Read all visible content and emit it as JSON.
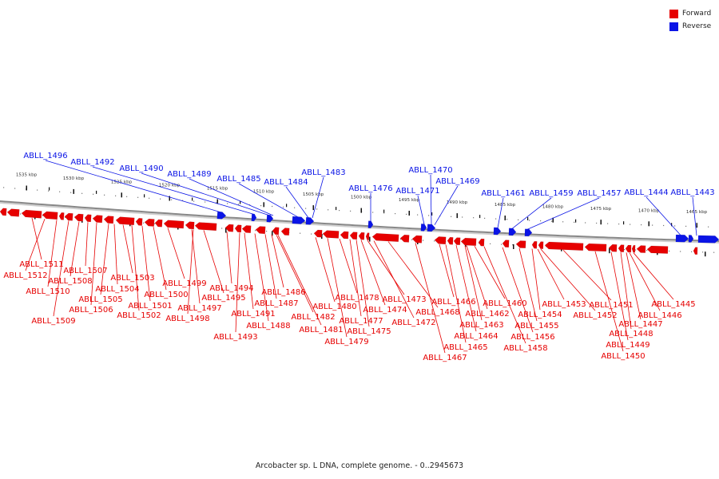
{
  "legend": {
    "forward_label": "Forward",
    "reverse_label": "Reverse",
    "forward_color": "#e60000",
    "reverse_color": "#0a14e6"
  },
  "caption": "Arcobacter sp. L DNA, complete genome. - 0..2945673",
  "colors": {
    "axis": "#888888",
    "tick": "#111111",
    "tick_label": "#333333"
  },
  "kbp_ticks": [
    "1535 kbp",
    "1530 kbp",
    "1525 kbp",
    "1520 kbp",
    "1515 kbp",
    "1510 kbp",
    "1505 kbp",
    "1500 kbp",
    "1495 kbp",
    "1490 kbp",
    "1485 kbp",
    "1480 kbp",
    "1475 kbp",
    "1470 kbp",
    "1465 kbp"
  ],
  "reverse_genes": [
    "ABLL_1496",
    "ABLL_1492",
    "ABLL_1490",
    "ABLL_1489",
    "ABLL_1485",
    "ABLL_1484",
    "ABLL_1483",
    "ABLL_1476",
    "ABLL_1471",
    "ABLL_1470",
    "ABLL_1469",
    "ABLL_1461",
    "ABLL_1459",
    "ABLL_1457",
    "ABLL_1444",
    "ABLL_1443"
  ],
  "forward_genes": [
    "ABLL_1511",
    "ABLL_1512",
    "ABLL_1510",
    "ABLL_1509",
    "ABLL_1508",
    "ABLL_1507",
    "ABLL_1506",
    "ABLL_1505",
    "ABLL_1504",
    "ABLL_1503",
    "ABLL_1502",
    "ABLL_1501",
    "ABLL_1500",
    "ABLL_1499",
    "ABLL_1498",
    "ABLL_1497",
    "ABLL_1495",
    "ABLL_1494",
    "ABLL_1493",
    "ABLL_1491",
    "ABLL_1488",
    "ABLL_1487",
    "ABLL_1486",
    "ABLL_1482",
    "ABLL_1481",
    "ABLL_1480",
    "ABLL_1479",
    "ABLL_1478",
    "ABLL_1477",
    "ABLL_1475",
    "ABLL_1474",
    "ABLL_1473",
    "ABLL_1472",
    "ABLL_1468",
    "ABLL_1467",
    "ABLL_1466",
    "ABLL_1465",
    "ABLL_1464",
    "ABLL_1463",
    "ABLL_1462",
    "ABLL_1460",
    "ABLL_1458",
    "ABLL_1456",
    "ABLL_1455",
    "ABLL_1454",
    "ABLL_1453",
    "ABLL_1452",
    "ABLL_1451",
    "ABLL_1450",
    "ABLL_1449",
    "ABLL_1448",
    "ABLL_1447",
    "ABLL_1446",
    "ABLL_1445"
  ]
}
